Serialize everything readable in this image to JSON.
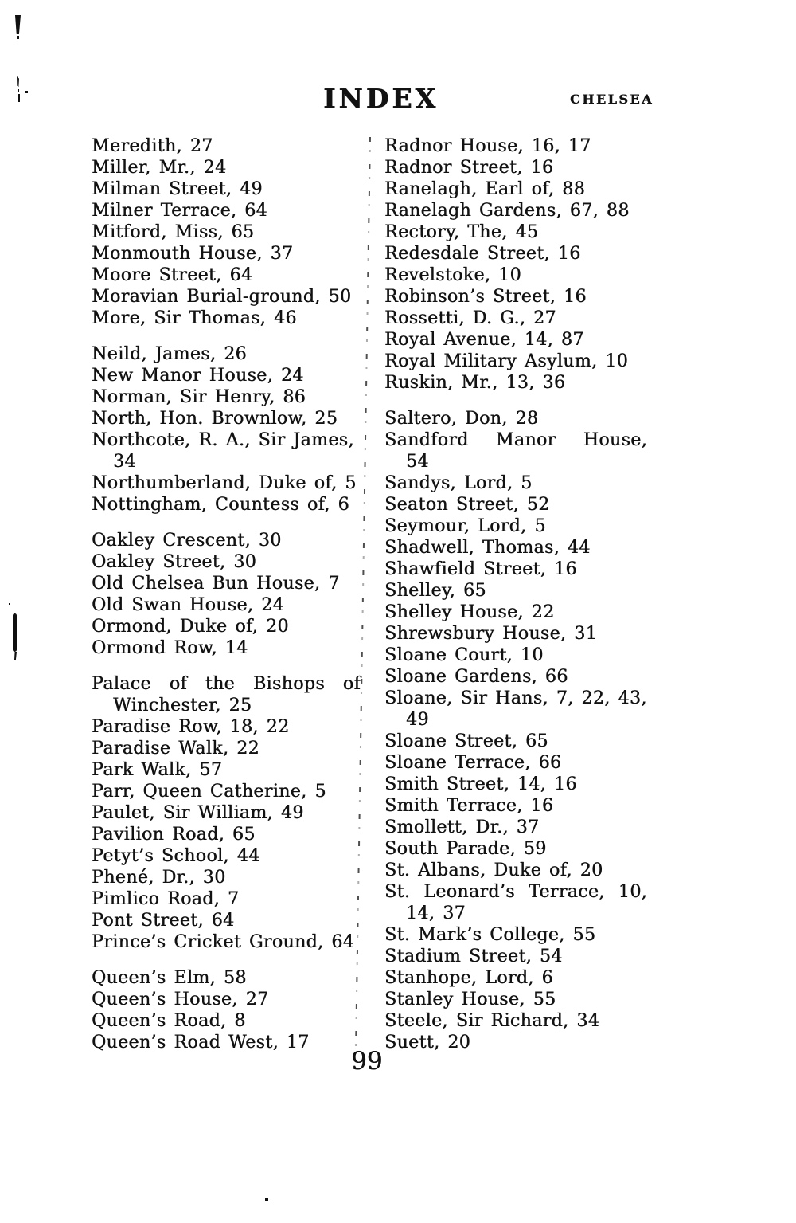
{
  "header": {
    "title": "INDEX",
    "running_head": "CHELSEA"
  },
  "page_number": "99",
  "index": {
    "left_column": [
      {
        "text": "Meredith, 27"
      },
      {
        "text": "Miller, Mr., 24"
      },
      {
        "text": "Milman Street, 49"
      },
      {
        "text": "Milner Terrace, 64"
      },
      {
        "text": "Mitford, Miss, 65"
      },
      {
        "text": "Monmouth House, 37"
      },
      {
        "text": "Moore Street, 64"
      },
      {
        "text": "Moravian Burial-ground, 50"
      },
      {
        "text": "More, Sir Thomas, 46"
      },
      {
        "style": "gap"
      },
      {
        "text": "Neild, James, 26"
      },
      {
        "text": "New Manor House, 24"
      },
      {
        "text": "Norman, Sir Henry, 86"
      },
      {
        "text": "North, Hon. Brownlow, 25"
      },
      {
        "text": "Northcote, R. A., Sir James,"
      },
      {
        "text": "34",
        "style": "indent"
      },
      {
        "text": "Northumberland, Duke of, 5"
      },
      {
        "text": "Nottingham, Countess of, 6"
      },
      {
        "style": "gap"
      },
      {
        "text": "Oakley Crescent, 30"
      },
      {
        "text": "Oakley Street, 30"
      },
      {
        "text": "Old Chelsea Bun House, 7"
      },
      {
        "text": "Old Swan House, 24"
      },
      {
        "text": "Ormond, Duke of, 20"
      },
      {
        "text": "Ormond Row, 14"
      },
      {
        "style": "gap"
      },
      {
        "text": "Palace of the Bishops of",
        "style": "justify"
      },
      {
        "text": "Winchester, 25",
        "style": "indent"
      },
      {
        "text": "Paradise Row, 18, 22"
      },
      {
        "text": "Paradise Walk, 22"
      },
      {
        "text": "Park Walk, 57"
      },
      {
        "text": "Parr, Queen Catherine, 5"
      },
      {
        "text": "Paulet, Sir William, 49"
      },
      {
        "text": "Pavilion Road, 65"
      },
      {
        "text": "Petyt’s School, 44"
      },
      {
        "text": "Phené, Dr., 30"
      },
      {
        "text": "Pimlico Road, 7"
      },
      {
        "text": "Pont Street, 64"
      },
      {
        "text": "Prince’s Cricket Ground, 64"
      },
      {
        "style": "gap"
      },
      {
        "text": "Queen’s Elm, 58"
      },
      {
        "text": "Queen’s House, 27"
      },
      {
        "text": "Queen’s Road, 8"
      },
      {
        "text": "Queen’s Road West, 17"
      }
    ],
    "right_column": [
      {
        "text": "Radnor House, 16, 17"
      },
      {
        "text": "Radnor Street, 16"
      },
      {
        "text": "Ranelagh, Earl of, 88"
      },
      {
        "text": "Ranelagh Gardens, 67, 88"
      },
      {
        "text": "Rectory, The, 45"
      },
      {
        "text": "Redesdale Street, 16"
      },
      {
        "text": "Revelstoke, 10"
      },
      {
        "text": "Robinson’s Street, 16"
      },
      {
        "text": "Rossetti, D. G., 27"
      },
      {
        "text": "Royal Avenue, 14, 87"
      },
      {
        "text": "Royal Military Asylum, 10"
      },
      {
        "text": "Ruskin, Mr., 13, 36"
      },
      {
        "style": "gap"
      },
      {
        "text": "Saltero, Don, 28"
      },
      {
        "text": "Sandford Manor House,",
        "style": "justify"
      },
      {
        "text": "54",
        "style": "indent"
      },
      {
        "text": "Sandys, Lord, 5"
      },
      {
        "text": "Seaton Street, 52"
      },
      {
        "text": "Seymour, Lord, 5"
      },
      {
        "text": "Shadwell, Thomas, 44"
      },
      {
        "text": "Shawfield Street, 16"
      },
      {
        "text": "Shelley, 65"
      },
      {
        "text": "Shelley House, 22"
      },
      {
        "text": "Shrewsbury House, 31"
      },
      {
        "text": "Sloane Court, 10"
      },
      {
        "text": "Sloane Gardens, 66"
      },
      {
        "text": "Sloane, Sir Hans, 7, 22, 43,"
      },
      {
        "text": "49",
        "style": "indent"
      },
      {
        "text": "Sloane Street, 65"
      },
      {
        "text": "Sloane Terrace, 66"
      },
      {
        "text": "Smith Street, 14, 16"
      },
      {
        "text": "Smith Terrace, 16"
      },
      {
        "text": "Smollett, Dr., 37"
      },
      {
        "text": "South Parade, 59"
      },
      {
        "text": "St. Albans, Duke of, 20"
      },
      {
        "text": "St. Leonard’s Terrace, 10,",
        "style": "justify"
      },
      {
        "text": "14, 37",
        "style": "indent"
      },
      {
        "text": "St. Mark’s College, 55"
      },
      {
        "text": "Stadium Street, 54"
      },
      {
        "text": "Stanhope, Lord, 6"
      },
      {
        "text": "Stanley House, 55"
      },
      {
        "text": "Steele, Sir Richard, 34"
      },
      {
        "text": "Suett, 20"
      }
    ]
  }
}
